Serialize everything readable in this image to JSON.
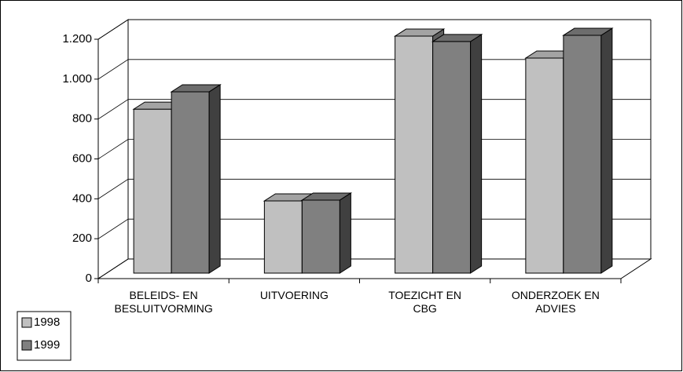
{
  "chart_data": {
    "type": "bar3d",
    "categories": [
      "BELEIDS- EN\nBESLUITVORMING",
      "UITVOERING",
      "TOEZICHT EN\nCBG",
      "ONDERZOEK EN\nADVIES"
    ],
    "series": [
      {
        "name": "1998",
        "color": "#c0c0c0",
        "values": [
          822,
          362,
          1188,
          1078
        ]
      },
      {
        "name": "1999",
        "color": "#808080",
        "values": [
          909,
          366,
          1161,
          1192
        ]
      }
    ],
    "ylim": [
      0,
      1200
    ],
    "yticks": [
      0,
      200,
      400,
      600,
      800,
      {
        "value": 1000,
        "label": "1.000"
      },
      {
        "value": 1200,
        "label": "1.200"
      }
    ],
    "grid": true,
    "legend": "bottom-left"
  }
}
